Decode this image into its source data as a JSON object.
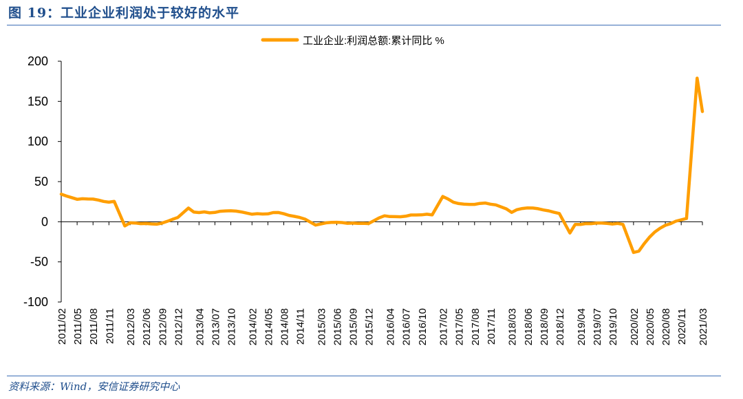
{
  "figure": {
    "title": "图 19：工业企业利润处于较好的水平",
    "source": "资料来源：Wind，安信证券研究中心"
  },
  "colors": {
    "line": "#FF9E00",
    "title": "#1f4e8c",
    "rule": "#3b6db5"
  },
  "chart_data": {
    "type": "line",
    "title": "",
    "xlabel": "",
    "ylabel": "",
    "ylim": [
      -100,
      200
    ],
    "yticks": [
      -100,
      -50,
      0,
      50,
      100,
      150,
      200
    ],
    "grid": false,
    "legend": "top-center",
    "x_tick_labels": [
      "2011/02",
      "2011/05",
      "2011/08",
      "2011/11",
      "2012/03",
      "2012/06",
      "2012/09",
      "2012/12",
      "2013/04",
      "2013/07",
      "2013/10",
      "2014/02",
      "2014/05",
      "2014/08",
      "2014/11",
      "2015/03",
      "2015/06",
      "2015/09",
      "2015/12",
      "2016/04",
      "2016/07",
      "2016/10",
      "2017/02",
      "2017/05",
      "2017/08",
      "2017/11",
      "2018/03",
      "2018/06",
      "2018/09",
      "2018/12",
      "2019/04",
      "2019/07",
      "2019/10",
      "2020/02",
      "2020/05",
      "2020/08",
      "2020/11",
      "2021/03"
    ],
    "series": [
      {
        "name": "工业企业:利润总额:累计同比 %",
        "points": [
          [
            "2011/02",
            34.3
          ],
          [
            "2011/03",
            32
          ],
          [
            "2011/04",
            30
          ],
          [
            "2011/05",
            28
          ],
          [
            "2011/06",
            28.7
          ],
          [
            "2011/07",
            28.3
          ],
          [
            "2011/08",
            28.2
          ],
          [
            "2011/09",
            27
          ],
          [
            "2011/10",
            25.3
          ],
          [
            "2011/11",
            24.4
          ],
          [
            "2011/12",
            25.4
          ],
          [
            "2012/02",
            -5.2
          ],
          [
            "2012/03",
            -1.3
          ],
          [
            "2012/04",
            -1.6
          ],
          [
            "2012/05",
            -2.4
          ],
          [
            "2012/06",
            -2.2
          ],
          [
            "2012/07",
            -2.7
          ],
          [
            "2012/08",
            -3.1
          ],
          [
            "2012/09",
            -1.8
          ],
          [
            "2012/10",
            0.5
          ],
          [
            "2012/11",
            3
          ],
          [
            "2012/12",
            5.3
          ],
          [
            "2013/02",
            17.1
          ],
          [
            "2013/03",
            12.1
          ],
          [
            "2013/04",
            11.4
          ],
          [
            "2013/05",
            12.3
          ],
          [
            "2013/06",
            11.1
          ],
          [
            "2013/07",
            11.6
          ],
          [
            "2013/08",
            13.1
          ],
          [
            "2013/09",
            13.5
          ],
          [
            "2013/10",
            13.7
          ],
          [
            "2013/11",
            13.2
          ],
          [
            "2013/12",
            12.2
          ],
          [
            "2014/02",
            9.4
          ],
          [
            "2014/03",
            10.1
          ],
          [
            "2014/04",
            9.6
          ],
          [
            "2014/05",
            9.8
          ],
          [
            "2014/06",
            11.4
          ],
          [
            "2014/07",
            11.5
          ],
          [
            "2014/08",
            10
          ],
          [
            "2014/09",
            7.9
          ],
          [
            "2014/10",
            6.7
          ],
          [
            "2014/11",
            5.3
          ],
          [
            "2014/12",
            3.3
          ],
          [
            "2015/02",
            -4.2
          ],
          [
            "2015/03",
            -2.7
          ],
          [
            "2015/04",
            -1.3
          ],
          [
            "2015/05",
            -0.8
          ],
          [
            "2015/06",
            -0.7
          ],
          [
            "2015/07",
            -1
          ],
          [
            "2015/08",
            -1.9
          ],
          [
            "2015/09",
            -1.7
          ],
          [
            "2015/10",
            -2
          ],
          [
            "2015/11",
            -1.9
          ],
          [
            "2015/12",
            -2.3
          ],
          [
            "2016/02",
            4.8
          ],
          [
            "2016/03",
            7.4
          ],
          [
            "2016/04",
            6.5
          ],
          [
            "2016/05",
            6.4
          ],
          [
            "2016/06",
            6.2
          ],
          [
            "2016/07",
            6.9
          ],
          [
            "2016/08",
            8.4
          ],
          [
            "2016/09",
            8.4
          ],
          [
            "2016/10",
            8.6
          ],
          [
            "2016/11",
            9.4
          ],
          [
            "2016/12",
            8.5
          ],
          [
            "2017/02",
            31.5
          ],
          [
            "2017/03",
            28.3
          ],
          [
            "2017/04",
            24.4
          ],
          [
            "2017/05",
            22.7
          ],
          [
            "2017/06",
            22
          ],
          [
            "2017/07",
            21.6
          ],
          [
            "2017/08",
            21.6
          ],
          [
            "2017/09",
            22.8
          ],
          [
            "2017/10",
            23.3
          ],
          [
            "2017/11",
            21.9
          ],
          [
            "2017/12",
            21
          ],
          [
            "2018/02",
            16.1
          ],
          [
            "2018/03",
            11.6
          ],
          [
            "2018/04",
            15
          ],
          [
            "2018/05",
            16.5
          ],
          [
            "2018/06",
            17.2
          ],
          [
            "2018/07",
            17.1
          ],
          [
            "2018/08",
            16.2
          ],
          [
            "2018/09",
            14.7
          ],
          [
            "2018/10",
            13.6
          ],
          [
            "2018/11",
            11.8
          ],
          [
            "2018/12",
            10.3
          ],
          [
            "2019/02",
            -14
          ],
          [
            "2019/03",
            -3.3
          ],
          [
            "2019/04",
            -3.4
          ],
          [
            "2019/05",
            -2.3
          ],
          [
            "2019/06",
            -2.4
          ],
          [
            "2019/07",
            -1.7
          ],
          [
            "2019/08",
            -1.7
          ],
          [
            "2019/09",
            -2.1
          ],
          [
            "2019/10",
            -2.9
          ],
          [
            "2019/11",
            -2.1
          ],
          [
            "2019/12",
            -3.3
          ],
          [
            "2020/02",
            -38.3
          ],
          [
            "2020/03",
            -36.7
          ],
          [
            "2020/04",
            -27.4
          ],
          [
            "2020/05",
            -19.3
          ],
          [
            "2020/06",
            -12.8
          ],
          [
            "2020/07",
            -8.1
          ],
          [
            "2020/08",
            -4.4
          ],
          [
            "2020/09",
            -2.4
          ],
          [
            "2020/10",
            0.7
          ],
          [
            "2020/11",
            2.4
          ],
          [
            "2020/12",
            4.1
          ],
          [
            "2021/02",
            178.9
          ],
          [
            "2021/03",
            137.3
          ]
        ]
      }
    ]
  }
}
